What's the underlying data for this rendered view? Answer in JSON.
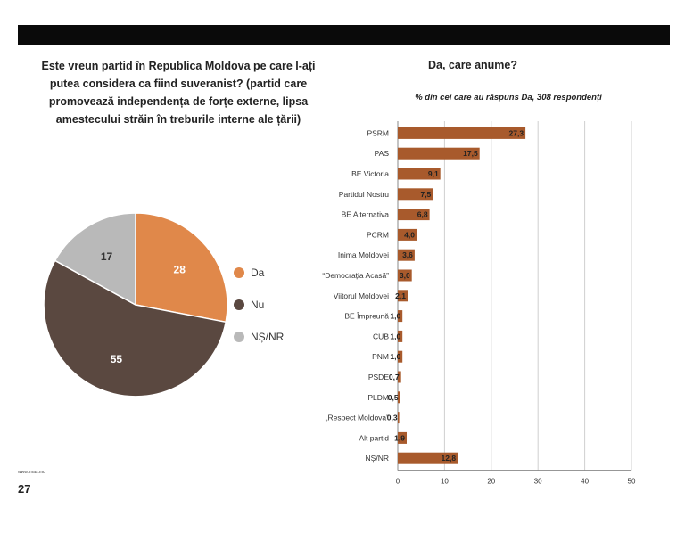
{
  "left_chart": {
    "title": "Este vreun partid în Republica Moldova pe care l-ați\nputea considera ca fiind suveranist? (partid care\npromovează independența de forțe externe, lipsa\namestecului străin în treburile interne ale țării)"
  },
  "right_chart": {
    "title": "Da, care anume?",
    "subtitle": "% din cei care au răspuns Da, 308 respondenți"
  },
  "footer": {
    "url": "www.imas.md",
    "page_number": "27"
  },
  "chart_data": [
    {
      "type": "pie",
      "categories": [
        "Da",
        "Nu",
        "NȘ/NR"
      ],
      "values": [
        28,
        55,
        17
      ],
      "colors": [
        "#e0884a",
        "#5a4840",
        "#b9b9b9"
      ],
      "legend_position": "right"
    },
    {
      "type": "bar",
      "orientation": "horizontal",
      "categories": [
        "PSRM",
        "PAS",
        "BE Victoria",
        "Partidul Nostru",
        "BE Alternativa",
        "PCRM",
        "Inima Moldovei",
        "“Democrația Acasă”",
        "Viitorul Moldovei",
        "BE Împreună",
        "CUB",
        "PNM",
        "PSDE",
        "PLDM",
        "„Respect Moldova”",
        "Alt partid",
        "NȘ/NR"
      ],
      "values": [
        27.3,
        17.5,
        9.1,
        7.5,
        6.8,
        4.0,
        3.6,
        3.0,
        2.1,
        1.0,
        1.0,
        1.0,
        0.7,
        0.5,
        0.3,
        1.9,
        12.8
      ],
      "value_labels": [
        "27,3",
        "17,5",
        "9,1",
        "7,5",
        "6,8",
        "4,0",
        "3,6",
        "3,0",
        "2,1",
        "1,0",
        "1,0",
        "1,0",
        "0,7",
        "0,5",
        "0,3",
        "1,9",
        "12,8"
      ],
      "xlim": [
        0,
        50
      ],
      "xticks": [
        "0",
        "10",
        "20",
        "30",
        "40",
        "50"
      ],
      "grid": true,
      "bar_color": "#a85a2c"
    }
  ]
}
